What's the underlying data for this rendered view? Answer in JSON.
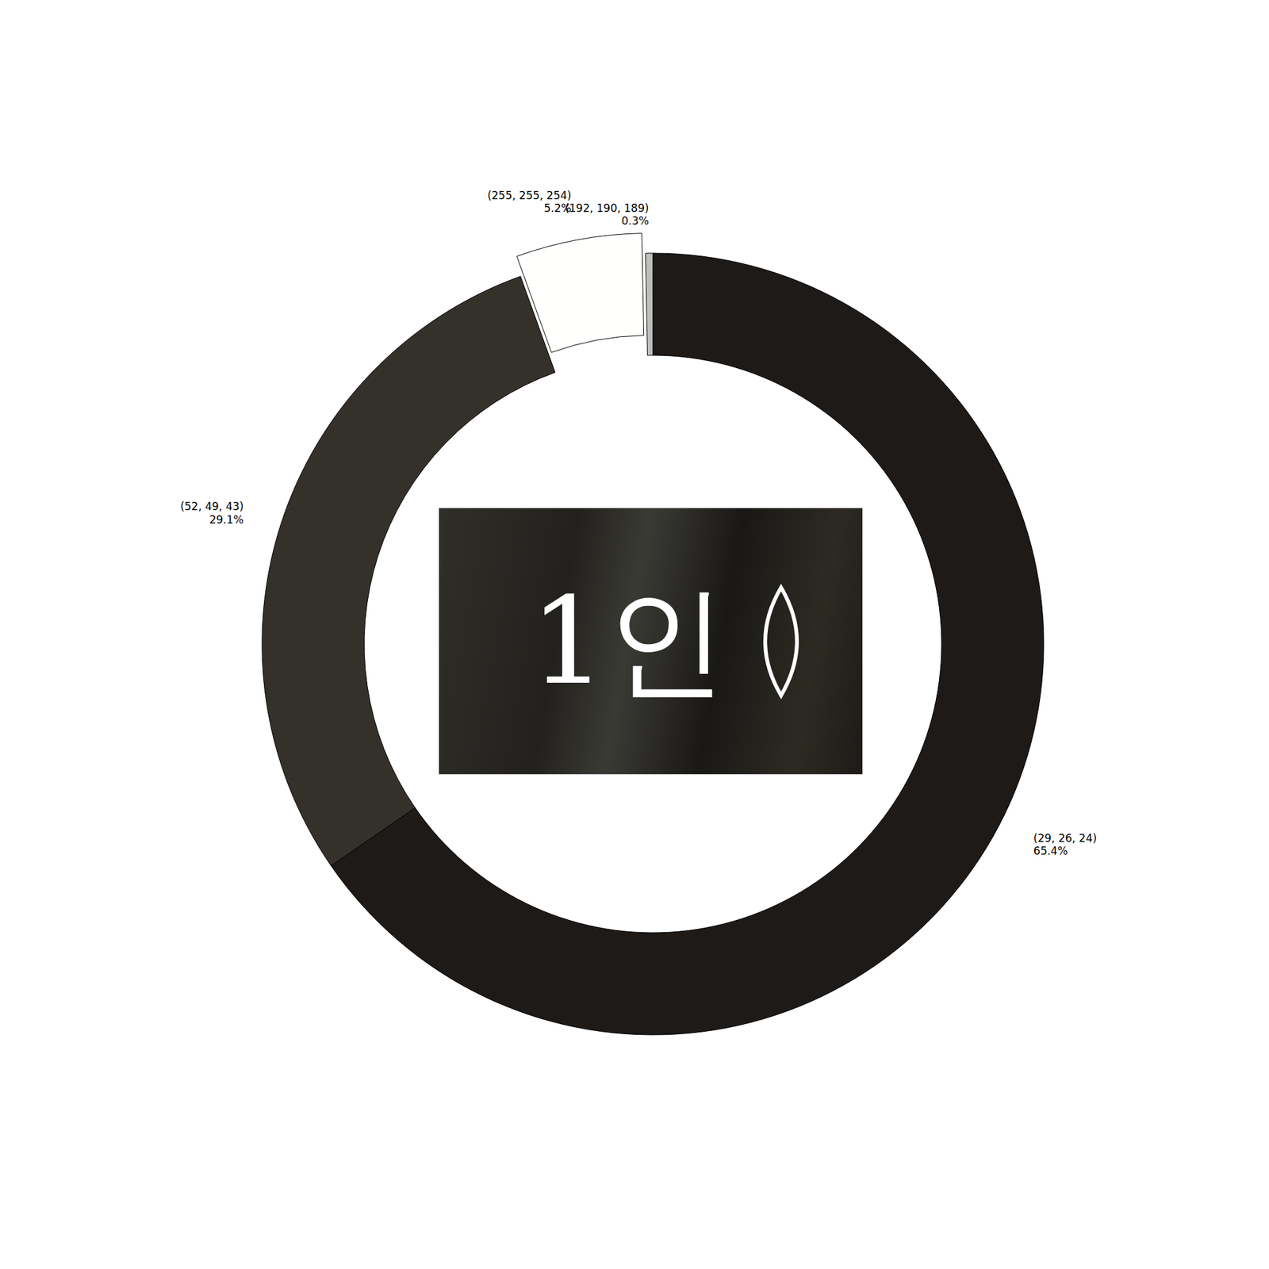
{
  "chart_data": {
    "type": "pie",
    "categories": [
      "(29, 26, 24)",
      "(52, 49, 43)",
      "(255, 255, 254)",
      "(192, 190, 189)"
    ],
    "values": [
      65.4,
      29.1,
      5.2,
      0.3
    ],
    "value_labels": [
      "65.4%",
      "29.1%",
      "5.2%",
      "0.3%"
    ],
    "colors": [
      "#1d1a18",
      "#34312b",
      "#fffffe",
      "#c0bebd"
    ],
    "center_text": "1인"
  }
}
